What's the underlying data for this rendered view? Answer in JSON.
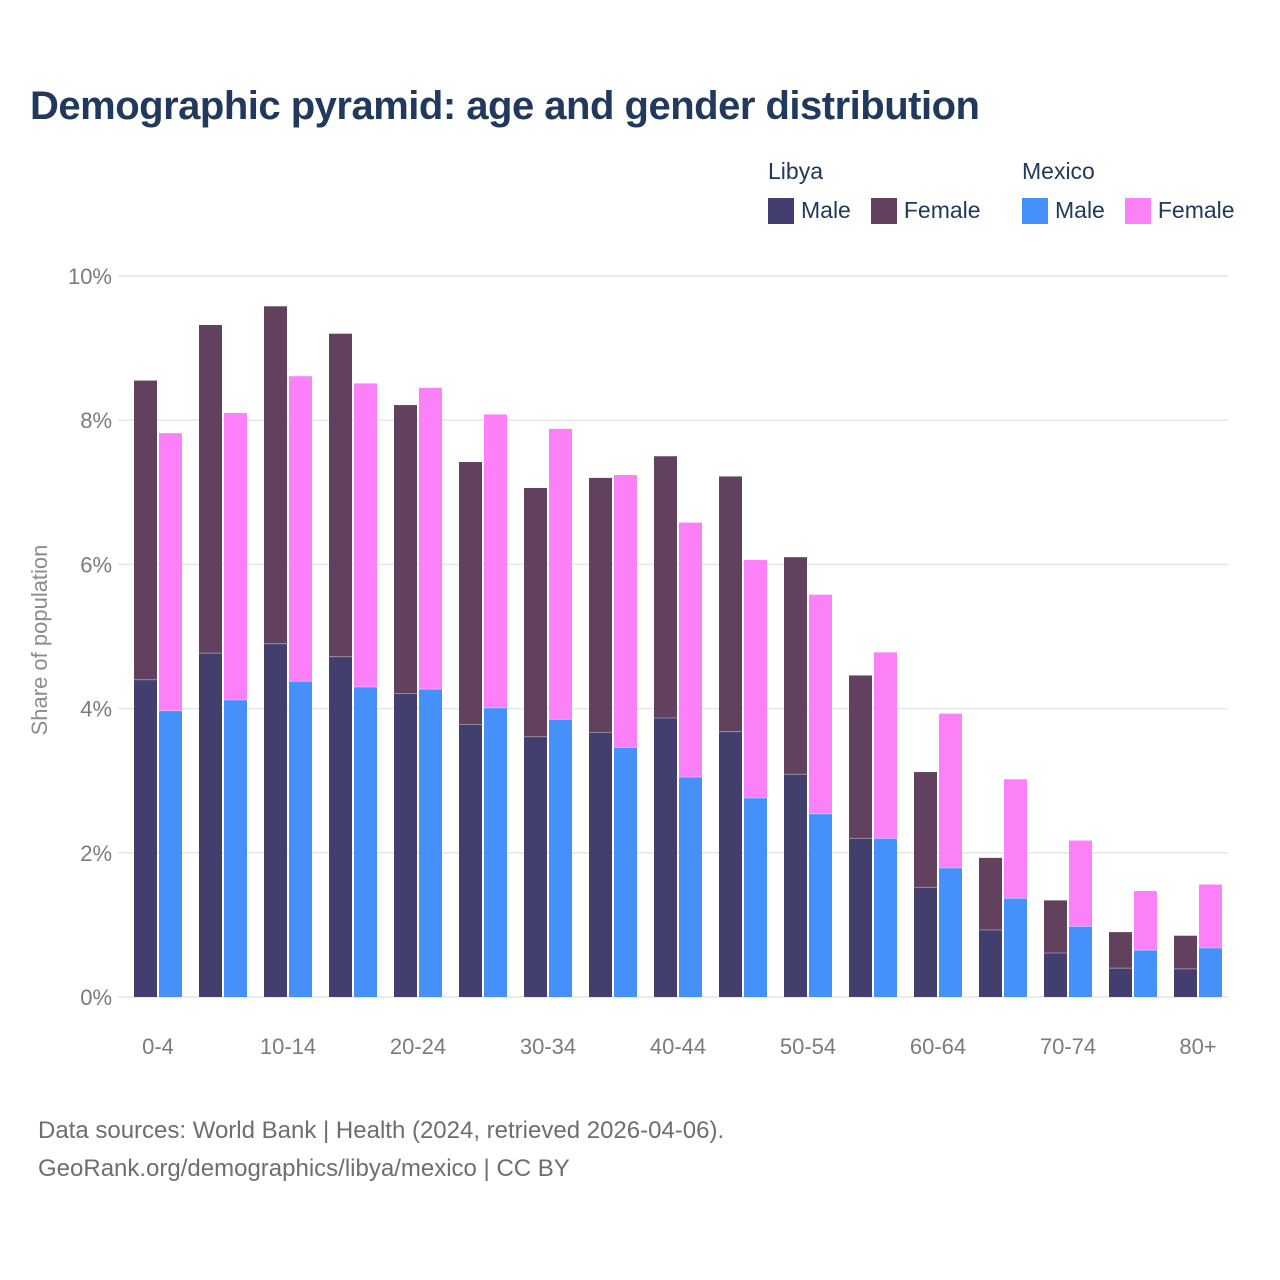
{
  "title": "Demographic pyramid: age and gender distribution",
  "legend": {
    "groups": [
      {
        "label": "Libya",
        "items": [
          {
            "label": "Male",
            "color": "#423f6e"
          },
          {
            "label": "Female",
            "color": "#61415d"
          }
        ]
      },
      {
        "label": "Mexico",
        "items": [
          {
            "label": "Male",
            "color": "#4590fa"
          },
          {
            "label": "Female",
            "color": "#fc80f8"
          }
        ]
      }
    ]
  },
  "chart_data": {
    "type": "bar",
    "stacked": true,
    "grouped_by": "country",
    "title": "Demographic pyramid: age and gender distribution",
    "xlabel": "",
    "ylabel": "Share of population",
    "units": "%",
    "ylim": [
      0,
      10
    ],
    "y_ticks": [
      0,
      2,
      4,
      6,
      8,
      10
    ],
    "grid": true,
    "legend_position": "top-right",
    "categories": [
      "0-4",
      "5-9",
      "10-14",
      "15-19",
      "20-24",
      "25-29",
      "30-34",
      "35-39",
      "40-44",
      "45-49",
      "50-54",
      "55-59",
      "60-64",
      "65-69",
      "70-74",
      "75-79",
      "80+"
    ],
    "x_tick_labels": [
      "0-4",
      "10-14",
      "20-24",
      "30-34",
      "40-44",
      "50-54",
      "60-64",
      "70-74",
      "80+"
    ],
    "series": [
      {
        "name": "Libya Male",
        "country": "Libya",
        "gender": "Male",
        "color": "#423f6e",
        "values": [
          4.4,
          4.77,
          4.9,
          4.72,
          4.21,
          3.78,
          3.61,
          3.67,
          3.87,
          3.68,
          3.09,
          2.2,
          1.52,
          0.93,
          0.61,
          0.4,
          0.39
        ]
      },
      {
        "name": "Libya Female",
        "country": "Libya",
        "gender": "Female",
        "color": "#61415d",
        "values": [
          4.15,
          4.55,
          4.68,
          4.48,
          4.0,
          3.64,
          3.45,
          3.53,
          3.63,
          3.54,
          3.01,
          2.26,
          1.6,
          1.0,
          0.73,
          0.5,
          0.46
        ]
      },
      {
        "name": "Mexico Male",
        "country": "Mexico",
        "gender": "Male",
        "color": "#4590fa",
        "values": [
          3.97,
          4.12,
          4.38,
          4.3,
          4.27,
          4.01,
          3.85,
          3.46,
          3.05,
          2.76,
          2.54,
          2.2,
          1.79,
          1.37,
          0.98,
          0.65,
          0.68
        ]
      },
      {
        "name": "Mexico Female",
        "country": "Mexico",
        "gender": "Female",
        "color": "#fc80f8",
        "values": [
          3.85,
          3.98,
          4.23,
          4.21,
          4.18,
          4.07,
          4.03,
          3.78,
          3.53,
          3.3,
          3.04,
          2.58,
          2.14,
          1.65,
          1.19,
          0.82,
          0.88
        ]
      }
    ]
  },
  "footer": {
    "line1": "Data sources: World Bank | Health (2024, retrieved 2026-04-06).",
    "line2": "GeoRank.org/demographics/libya/mexico | CC BY"
  }
}
